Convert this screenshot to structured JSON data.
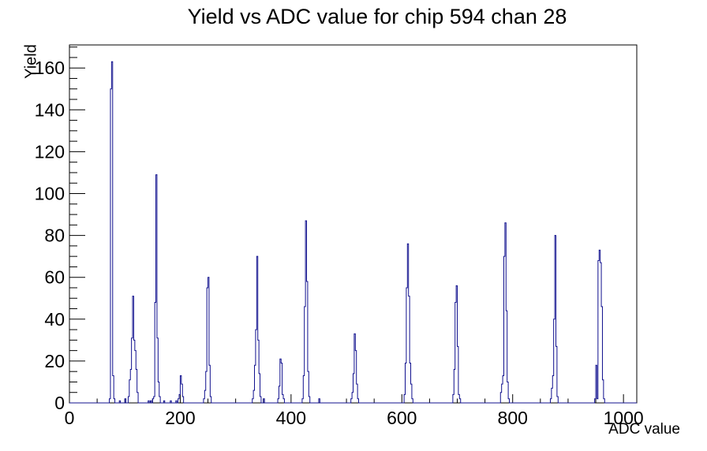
{
  "chart_data": {
    "type": "bar",
    "title": "Yield vs ADC value for chip 594 chan 28",
    "xlabel": "ADC value",
    "ylabel": "Yield",
    "xlim": [
      0,
      1024
    ],
    "ylim": [
      0,
      171
    ],
    "grid": false,
    "legend": "none",
    "line_color": "#10108E",
    "x_major_ticks": [
      0,
      200,
      400,
      600,
      800,
      1000
    ],
    "x_minor_step": 50,
    "y_major_ticks": [
      0,
      20,
      40,
      60,
      80,
      100,
      120,
      140,
      160
    ],
    "y_minor_step": 5,
    "bin_width": 2,
    "bins": [
      [
        72,
        2
      ],
      [
        74,
        150
      ],
      [
        76,
        163
      ],
      [
        78,
        13
      ],
      [
        80,
        2
      ],
      [
        90,
        1
      ],
      [
        100,
        2
      ],
      [
        106,
        3
      ],
      [
        108,
        11
      ],
      [
        110,
        16
      ],
      [
        112,
        31
      ],
      [
        114,
        51
      ],
      [
        116,
        30
      ],
      [
        118,
        25
      ],
      [
        120,
        16
      ],
      [
        122,
        5
      ],
      [
        142,
        1
      ],
      [
        146,
        1
      ],
      [
        150,
        2
      ],
      [
        152,
        3
      ],
      [
        154,
        48
      ],
      [
        156,
        109
      ],
      [
        158,
        31
      ],
      [
        160,
        10
      ],
      [
        162,
        3
      ],
      [
        170,
        1
      ],
      [
        182,
        1
      ],
      [
        192,
        1
      ],
      [
        196,
        2
      ],
      [
        198,
        4
      ],
      [
        200,
        13
      ],
      [
        202,
        9
      ],
      [
        204,
        3
      ],
      [
        242,
        2
      ],
      [
        244,
        6
      ],
      [
        246,
        15
      ],
      [
        248,
        55
      ],
      [
        250,
        60
      ],
      [
        252,
        18
      ],
      [
        254,
        3
      ],
      [
        330,
        2
      ],
      [
        332,
        6
      ],
      [
        334,
        18
      ],
      [
        336,
        35
      ],
      [
        338,
        70
      ],
      [
        340,
        30
      ],
      [
        342,
        14
      ],
      [
        344,
        3
      ],
      [
        350,
        2
      ],
      [
        376,
        2
      ],
      [
        378,
        8
      ],
      [
        380,
        21
      ],
      [
        382,
        19
      ],
      [
        384,
        4
      ],
      [
        386,
        2
      ],
      [
        420,
        2
      ],
      [
        422,
        13
      ],
      [
        424,
        46
      ],
      [
        426,
        87
      ],
      [
        428,
        58
      ],
      [
        430,
        15
      ],
      [
        432,
        3
      ],
      [
        450,
        2
      ],
      [
        508,
        2
      ],
      [
        510,
        5
      ],
      [
        512,
        14
      ],
      [
        514,
        33
      ],
      [
        516,
        25
      ],
      [
        518,
        9
      ],
      [
        520,
        2
      ],
      [
        604,
        4
      ],
      [
        606,
        19
      ],
      [
        608,
        55
      ],
      [
        610,
        76
      ],
      [
        612,
        51
      ],
      [
        614,
        19
      ],
      [
        616,
        9
      ],
      [
        618,
        2
      ],
      [
        692,
        4
      ],
      [
        694,
        16
      ],
      [
        696,
        48
      ],
      [
        698,
        56
      ],
      [
        700,
        27
      ],
      [
        702,
        4
      ],
      [
        704,
        2
      ],
      [
        778,
        5
      ],
      [
        780,
        9
      ],
      [
        782,
        13
      ],
      [
        784,
        70
      ],
      [
        786,
        86
      ],
      [
        788,
        44
      ],
      [
        790,
        10
      ],
      [
        792,
        2
      ],
      [
        868,
        2
      ],
      [
        870,
        7
      ],
      [
        872,
        13
      ],
      [
        874,
        40
      ],
      [
        876,
        80
      ],
      [
        878,
        27
      ],
      [
        880,
        3
      ],
      [
        948,
        2
      ],
      [
        950,
        18
      ],
      [
        952,
        2
      ],
      [
        954,
        68
      ],
      [
        956,
        73
      ],
      [
        958,
        67
      ],
      [
        960,
        46
      ],
      [
        962,
        11
      ],
      [
        964,
        2
      ]
    ]
  }
}
